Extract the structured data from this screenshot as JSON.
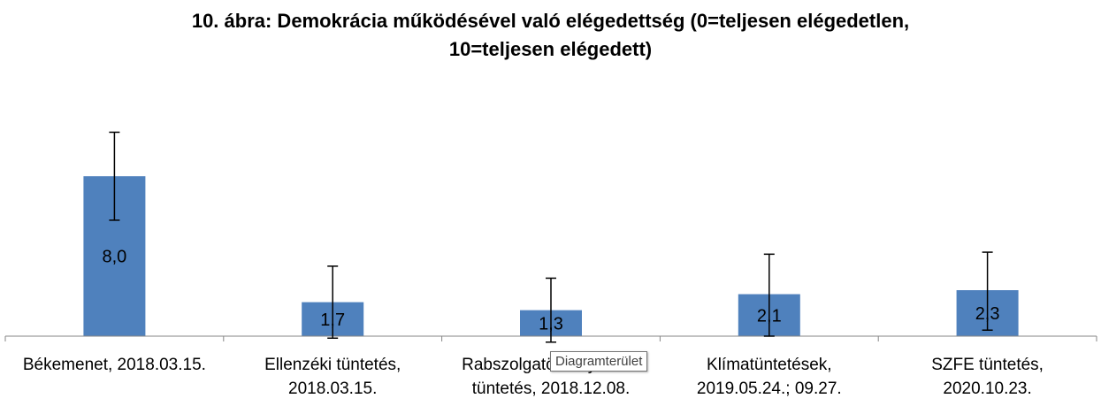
{
  "chart_data": {
    "type": "bar",
    "title_lines": [
      "10. ábra: Demokrácia működésével való elégedettség (0=teljesen elégedetlen,",
      "10=teljesen elégedett)"
    ],
    "categories": [
      [
        "Békemenet, 2018.03.15."
      ],
      [
        "Ellenzéki tüntetés,",
        "2018.03.15."
      ],
      [
        "Rabszolgatörvény elleni",
        "tüntetés, 2018.12.08."
      ],
      [
        "Klímatüntetések,",
        "2019.05.24.; 09.27."
      ],
      [
        "SZFE tüntetés,",
        "2020.10.23."
      ]
    ],
    "values": [
      8.0,
      1.7,
      1.3,
      2.1,
      2.3
    ],
    "value_labels": [
      "8,0",
      "1,7",
      "1,3",
      "2,1",
      "2,3"
    ],
    "error_bars": [
      [
        5.8,
        10.2
      ],
      [
        -0.1,
        3.5
      ],
      [
        -0.3,
        2.9
      ],
      [
        0.0,
        4.1
      ],
      [
        0.3,
        4.2
      ]
    ],
    "ylim": [
      0,
      10
    ],
    "grid": false,
    "bar_color": "#4f81bd",
    "tooltip": "Diagramterület"
  }
}
